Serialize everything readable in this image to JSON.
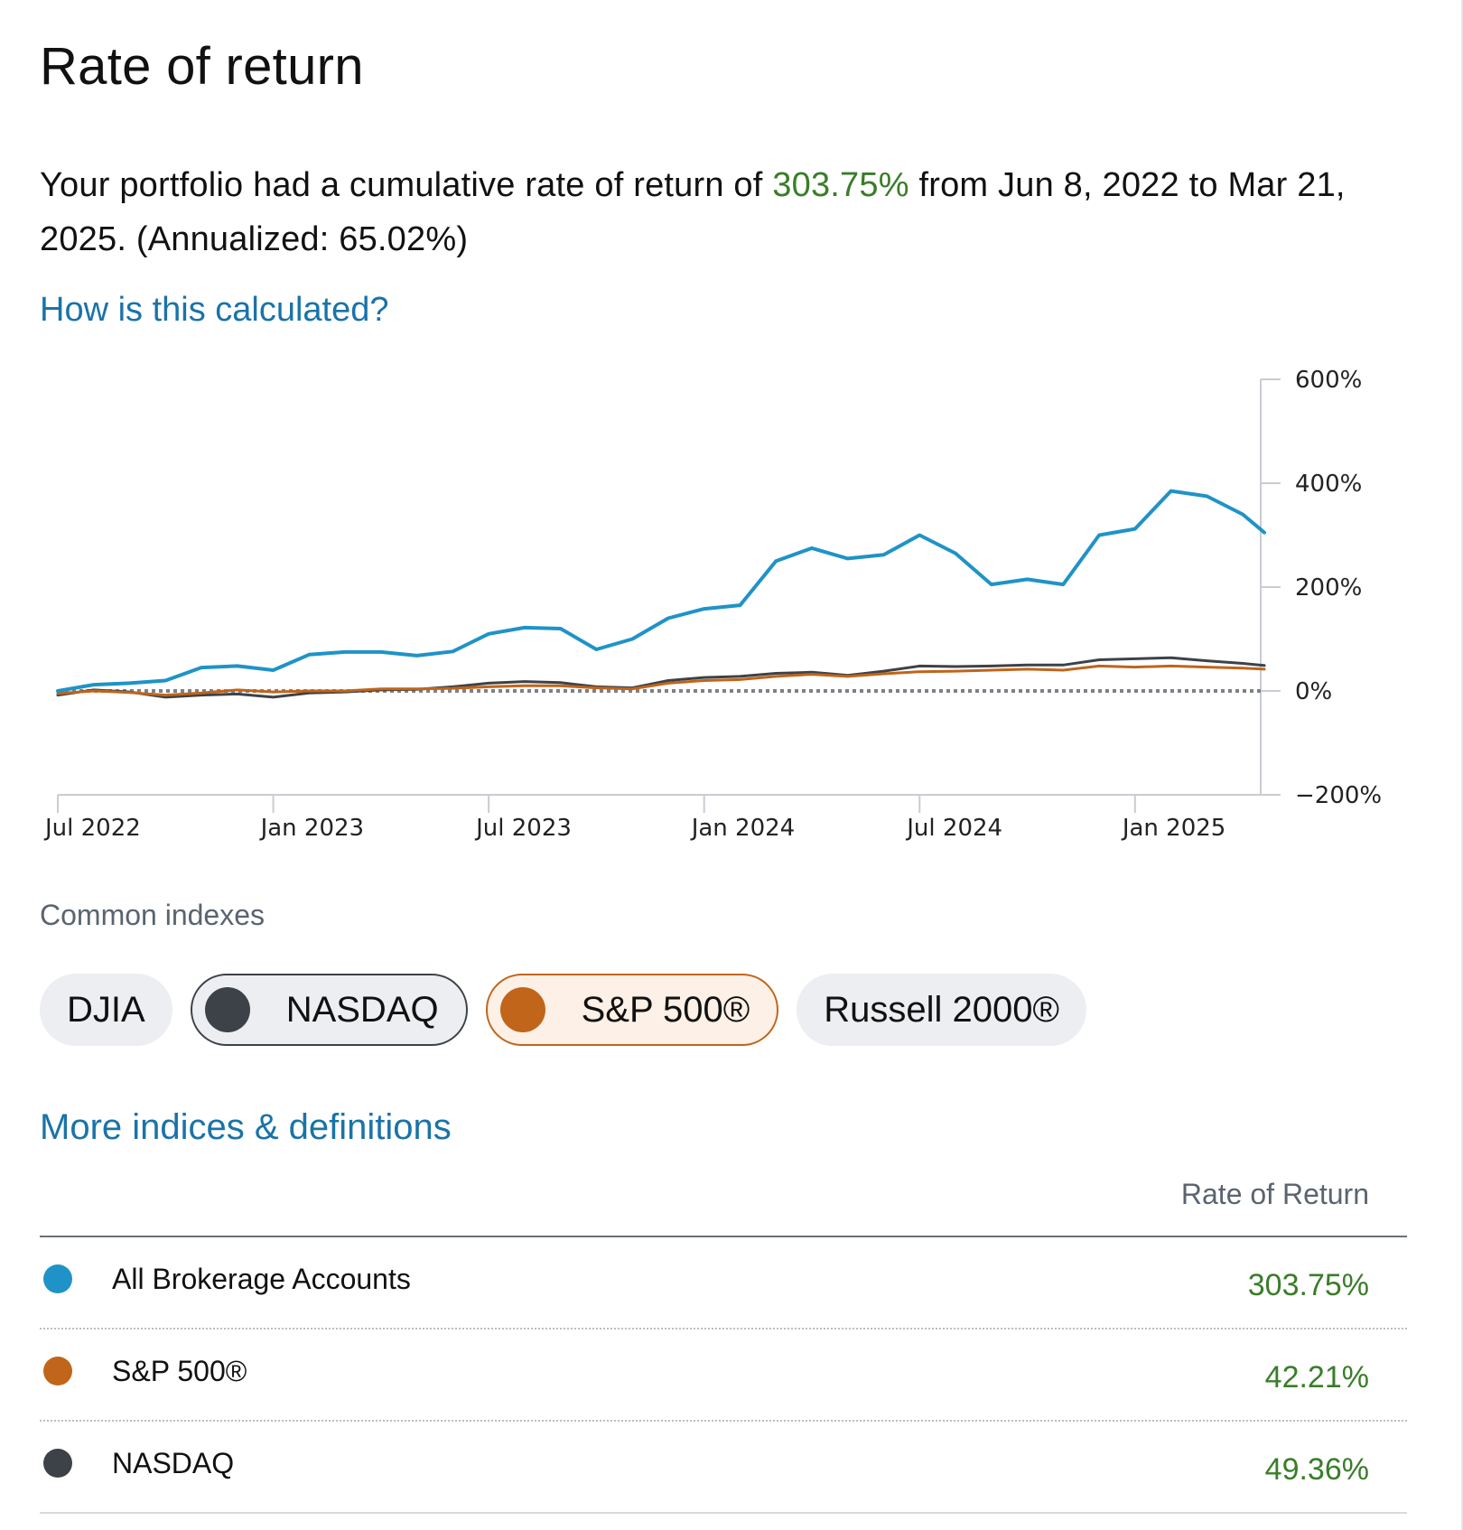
{
  "header": {
    "title": "Rate of return"
  },
  "summary": {
    "prefix": "Your portfolio had a cumulative rate of return of ",
    "cumulative": "303.75%",
    "suffix": " from Jun 8, 2022 to Mar 21, 2025. (Annualized: 65.02%)"
  },
  "links": {
    "how_calculated": "How is this calculated?",
    "more_indices": "More indices & definitions"
  },
  "colors": {
    "portfolio": "#1f93c7",
    "sp500": "#c0651a",
    "nasdaq": "#3d4248",
    "positive": "#3a7d2a",
    "link": "#1a73a8"
  },
  "chart_data": {
    "type": "line",
    "title": "",
    "xlabel": "",
    "ylabel": "",
    "ylim": [
      -200,
      600
    ],
    "y_ticks": [
      600,
      400,
      200,
      0,
      -200
    ],
    "y_tick_labels": [
      "600%",
      "400%",
      "200%",
      "0%",
      "−200%"
    ],
    "x_range": [
      0,
      33.5
    ],
    "x_ticks": [
      0,
      6,
      12,
      18,
      24,
      30
    ],
    "x_tick_labels": [
      "Jul 2022",
      "Jan 2023",
      "Jul 2023",
      "Jan 2024",
      "Jul 2024",
      "Jan 2025"
    ],
    "x": [
      0,
      1,
      2,
      3,
      4,
      5,
      6,
      7,
      8,
      9,
      10,
      11,
      12,
      13,
      14,
      15,
      16,
      17,
      18,
      19,
      20,
      21,
      22,
      23,
      24,
      25,
      26,
      27,
      28,
      29,
      30,
      31,
      32,
      33,
      33.6
    ],
    "series": [
      {
        "name": "All Brokerage Accounts",
        "color": "#1f93c7",
        "values": [
          0,
          12,
          15,
          20,
          45,
          48,
          40,
          70,
          75,
          75,
          68,
          76,
          110,
          122,
          120,
          80,
          100,
          140,
          158,
          165,
          250,
          275,
          255,
          262,
          300,
          265,
          205,
          215,
          205,
          300,
          312,
          385,
          375,
          340,
          305
        ]
      },
      {
        "name": "S&P 500®",
        "color": "#c0651a",
        "values": [
          -5,
          0,
          -3,
          -8,
          -4,
          2,
          -2,
          0,
          0,
          4,
          4,
          5,
          8,
          10,
          10,
          6,
          4,
          15,
          20,
          22,
          28,
          32,
          28,
          33,
          37,
          38,
          40,
          42,
          40,
          48,
          46,
          48,
          46,
          44,
          42
        ]
      },
      {
        "name": "NASDAQ",
        "color": "#3d4248",
        "values": [
          -8,
          2,
          -2,
          -12,
          -8,
          -6,
          -12,
          -4,
          -2,
          2,
          3,
          8,
          15,
          18,
          16,
          8,
          6,
          20,
          26,
          28,
          34,
          36,
          30,
          38,
          48,
          47,
          48,
          50,
          50,
          60,
          62,
          64,
          58,
          53,
          49
        ]
      }
    ]
  },
  "indexes": {
    "label": "Common indexes",
    "chips": [
      {
        "label": "DJIA",
        "selected": false
      },
      {
        "label": "NASDAQ",
        "selected": true
      },
      {
        "label": "S&P 500®",
        "selected": true
      },
      {
        "label": "Russell 2000®",
        "selected": false
      }
    ]
  },
  "table": {
    "column_header": "Rate of Return",
    "rows": [
      {
        "name": "All Brokerage Accounts",
        "value": "303.75%",
        "color": "#1f93c7"
      },
      {
        "name": "S&P 500®",
        "value": "42.21%",
        "color": "#c0651a"
      },
      {
        "name": "NASDAQ",
        "value": "49.36%",
        "color": "#3d4248"
      }
    ]
  }
}
